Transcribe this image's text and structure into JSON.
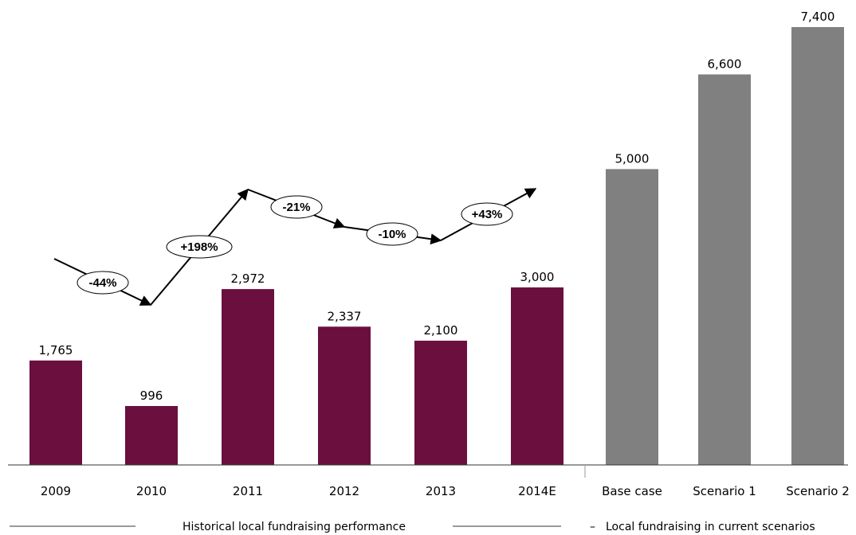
{
  "chart_data": {
    "type": "bar",
    "categories": [
      "2009",
      "2010",
      "2011",
      "2012",
      "2013",
      "2014E",
      "Base case",
      "Scenario 1",
      "Scenario 2"
    ],
    "values": [
      1765,
      996,
      2972,
      2337,
      2100,
      3000,
      5000,
      6600,
      7400
    ],
    "value_labels": [
      "1,765",
      "996",
      "2,972",
      "2,337",
      "2,100",
      "3,000",
      "5,000",
      "6,600",
      "7,400"
    ],
    "groups": [
      {
        "label": "Historical local fundraising performance",
        "categories": [
          "2009",
          "2010",
          "2011",
          "2012",
          "2013",
          "2014E"
        ],
        "color": "#6a0f3e"
      },
      {
        "label": "Local fundraising in current scenarios",
        "categories": [
          "Base case",
          "Scenario 1",
          "Scenario 2"
        ],
        "color": "#808080"
      }
    ],
    "growth_labels": [
      "-44%",
      "+198%",
      "-21%",
      "-10%",
      "+43%"
    ],
    "ylim": [
      0,
      7600
    ],
    "grid": false,
    "title": "",
    "xlabel": "",
    "ylabel": ""
  },
  "legend": {
    "historical": "Historical local fundraising performance",
    "scenarios": "Local fundraising in current scenarios",
    "scenarios_prefix": "–"
  }
}
